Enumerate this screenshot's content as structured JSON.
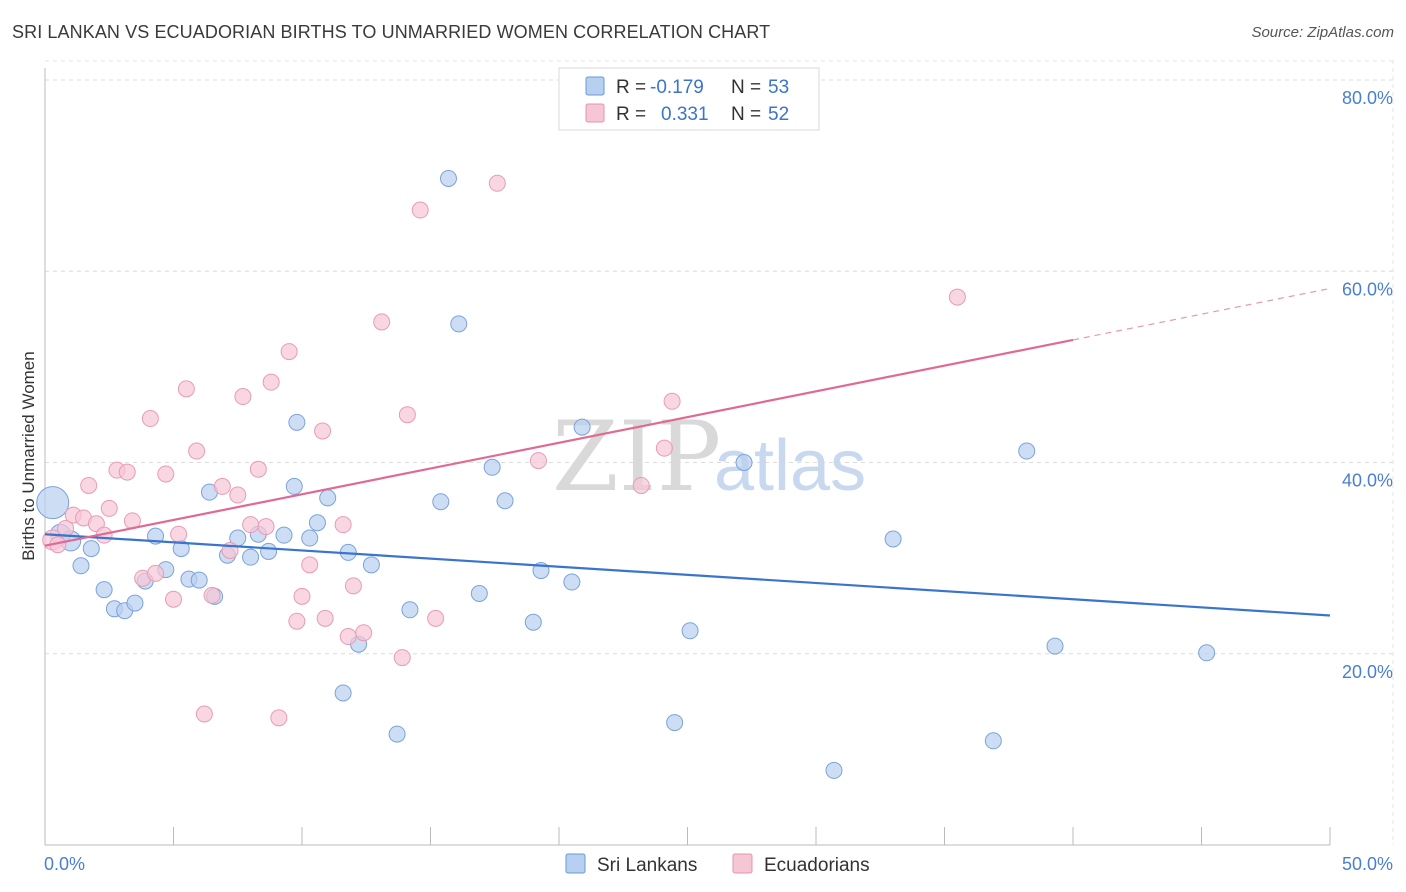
{
  "title": "SRI LANKAN VS ECUADORIAN BIRTHS TO UNMARRIED WOMEN CORRELATION CHART",
  "source": "Source: ZipAtlas.com",
  "watermark": {
    "zip": "ZIP",
    "atlas": "atlas"
  },
  "colors": {
    "blue": "#3a74cc",
    "blue_fill": "#b8d0f0",
    "pink": "#e06a94",
    "pink_fill": "#f7c6d5"
  },
  "chart_data": {
    "type": "scatter",
    "xlabel": "",
    "ylabel": "Births to Unmarried Women",
    "xlim": [
      0,
      50
    ],
    "ylim": [
      0,
      85
    ],
    "x_tick_labels": [
      "0.0%",
      "50.0%"
    ],
    "y_ticks": [
      20,
      40,
      60,
      80
    ],
    "y_tick_labels": [
      "20.0%",
      "40.0%",
      "60.0%",
      "80.0%"
    ],
    "grid": true,
    "legend": [
      {
        "r_label": "R =",
        "r_value": "-0.179",
        "n_label": "N =",
        "n_value": "53"
      },
      {
        "r_label": "R =",
        "r_value": "0.331",
        "n_label": "N =",
        "n_value": "52"
      }
    ],
    "series": [
      {
        "name": "Sri Lankans",
        "color": "#3a74cc",
        "trend": {
          "x0": 0,
          "y0": 32.5,
          "x1": 50,
          "y1": 24.0,
          "solid_until": 50
        },
        "points": [
          [
            0.3,
            35.8,
            16
          ],
          [
            0.6,
            32.5,
            10
          ],
          [
            1.0,
            31.8,
            10
          ],
          [
            1.4,
            29.2,
            8
          ],
          [
            1.8,
            31.0,
            8
          ],
          [
            2.3,
            26.7,
            8
          ],
          [
            2.7,
            24.7,
            8
          ],
          [
            3.1,
            24.5,
            8
          ],
          [
            3.5,
            25.3,
            8
          ],
          [
            3.9,
            27.6,
            8
          ],
          [
            4.3,
            32.3,
            8
          ],
          [
            4.7,
            28.8,
            8
          ],
          [
            5.3,
            31.0,
            8
          ],
          [
            5.6,
            27.8,
            8
          ],
          [
            6.0,
            27.7,
            8
          ],
          [
            6.4,
            36.9,
            8
          ],
          [
            6.6,
            26.0,
            8
          ],
          [
            7.1,
            30.3,
            8
          ],
          [
            7.5,
            32.1,
            8
          ],
          [
            8.0,
            30.1,
            8
          ],
          [
            8.3,
            32.5,
            8
          ],
          [
            8.7,
            30.7,
            8
          ],
          [
            9.3,
            32.4,
            8
          ],
          [
            9.7,
            37.5,
            8
          ],
          [
            9.8,
            44.2,
            8
          ],
          [
            10.3,
            32.1,
            8
          ],
          [
            10.6,
            33.7,
            8
          ],
          [
            11.0,
            36.3,
            8
          ],
          [
            11.8,
            30.6,
            8
          ],
          [
            11.6,
            15.9,
            8
          ],
          [
            12.2,
            21.0,
            8
          ],
          [
            12.7,
            29.3,
            8
          ],
          [
            13.7,
            11.6,
            8
          ],
          [
            14.2,
            24.6,
            8
          ],
          [
            15.4,
            35.9,
            8
          ],
          [
            15.7,
            69.7,
            8
          ],
          [
            16.1,
            54.5,
            8
          ],
          [
            16.9,
            26.3,
            8
          ],
          [
            17.4,
            39.5,
            8
          ],
          [
            17.9,
            36.0,
            8
          ],
          [
            19.0,
            23.3,
            8
          ],
          [
            19.3,
            28.7,
            8
          ],
          [
            20.5,
            27.5,
            8
          ],
          [
            20.9,
            43.7,
            8
          ],
          [
            24.5,
            12.8,
            8
          ],
          [
            25.1,
            22.4,
            8
          ],
          [
            27.2,
            40.0,
            8
          ],
          [
            30.7,
            7.8,
            8
          ],
          [
            33.0,
            32.0,
            8
          ],
          [
            36.9,
            10.9,
            8
          ],
          [
            38.2,
            41.2,
            8
          ],
          [
            39.3,
            20.8,
            8
          ],
          [
            45.2,
            20.1,
            8
          ]
        ]
      },
      {
        "name": "Ecuadorians",
        "color": "#e06a94",
        "trend": {
          "x0": 0,
          "y0": 31.3,
          "x1": 50,
          "y1": 58.2,
          "solid_until": 40
        },
        "points": [
          [
            0.3,
            31.9,
            10
          ],
          [
            0.5,
            31.4,
            8
          ],
          [
            0.8,
            33.1,
            8
          ],
          [
            1.1,
            34.5,
            8
          ],
          [
            1.5,
            34.2,
            8
          ],
          [
            1.7,
            37.6,
            8
          ],
          [
            2.0,
            33.6,
            8
          ],
          [
            2.3,
            32.4,
            8
          ],
          [
            2.5,
            35.2,
            8
          ],
          [
            2.8,
            39.2,
            8
          ],
          [
            3.2,
            39.0,
            8
          ],
          [
            3.4,
            33.9,
            8
          ],
          [
            3.8,
            27.9,
            8
          ],
          [
            4.1,
            44.6,
            8
          ],
          [
            4.3,
            28.4,
            8
          ],
          [
            4.7,
            38.8,
            8
          ],
          [
            5.0,
            25.7,
            8
          ],
          [
            5.2,
            32.5,
            8
          ],
          [
            5.5,
            47.7,
            8
          ],
          [
            5.9,
            41.2,
            8
          ],
          [
            6.2,
            13.7,
            8
          ],
          [
            6.5,
            26.1,
            8
          ],
          [
            6.9,
            37.5,
            8
          ],
          [
            7.2,
            30.8,
            8
          ],
          [
            7.5,
            36.6,
            8
          ],
          [
            7.7,
            46.9,
            8
          ],
          [
            8.0,
            33.5,
            8
          ],
          [
            8.3,
            39.3,
            8
          ],
          [
            8.6,
            33.3,
            8
          ],
          [
            8.8,
            48.4,
            8
          ],
          [
            9.1,
            13.3,
            8
          ],
          [
            9.5,
            51.6,
            8
          ],
          [
            9.8,
            23.4,
            8
          ],
          [
            10.0,
            26.0,
            8
          ],
          [
            10.3,
            29.3,
            8
          ],
          [
            10.8,
            43.3,
            8
          ],
          [
            10.9,
            23.7,
            8
          ],
          [
            11.6,
            33.5,
            8
          ],
          [
            11.8,
            21.8,
            8
          ],
          [
            12.0,
            27.1,
            8
          ],
          [
            12.4,
            22.2,
            8
          ],
          [
            13.1,
            54.7,
            8
          ],
          [
            13.9,
            19.6,
            8
          ],
          [
            14.1,
            45.0,
            8
          ],
          [
            14.6,
            66.4,
            8
          ],
          [
            15.2,
            23.7,
            8
          ],
          [
            17.6,
            69.2,
            8
          ],
          [
            19.2,
            40.2,
            8
          ],
          [
            23.2,
            37.6,
            8
          ],
          [
            24.1,
            41.5,
            8
          ],
          [
            24.4,
            46.4,
            8
          ],
          [
            35.5,
            57.3,
            8
          ]
        ]
      }
    ]
  },
  "bottom_legend": [
    {
      "label": "Sri Lankans",
      "color": "#b8d0f0",
      "stroke": "#6a98d8"
    },
    {
      "label": "Ecuadorians",
      "color": "#f7c6d5",
      "stroke": "#e493ae"
    }
  ]
}
